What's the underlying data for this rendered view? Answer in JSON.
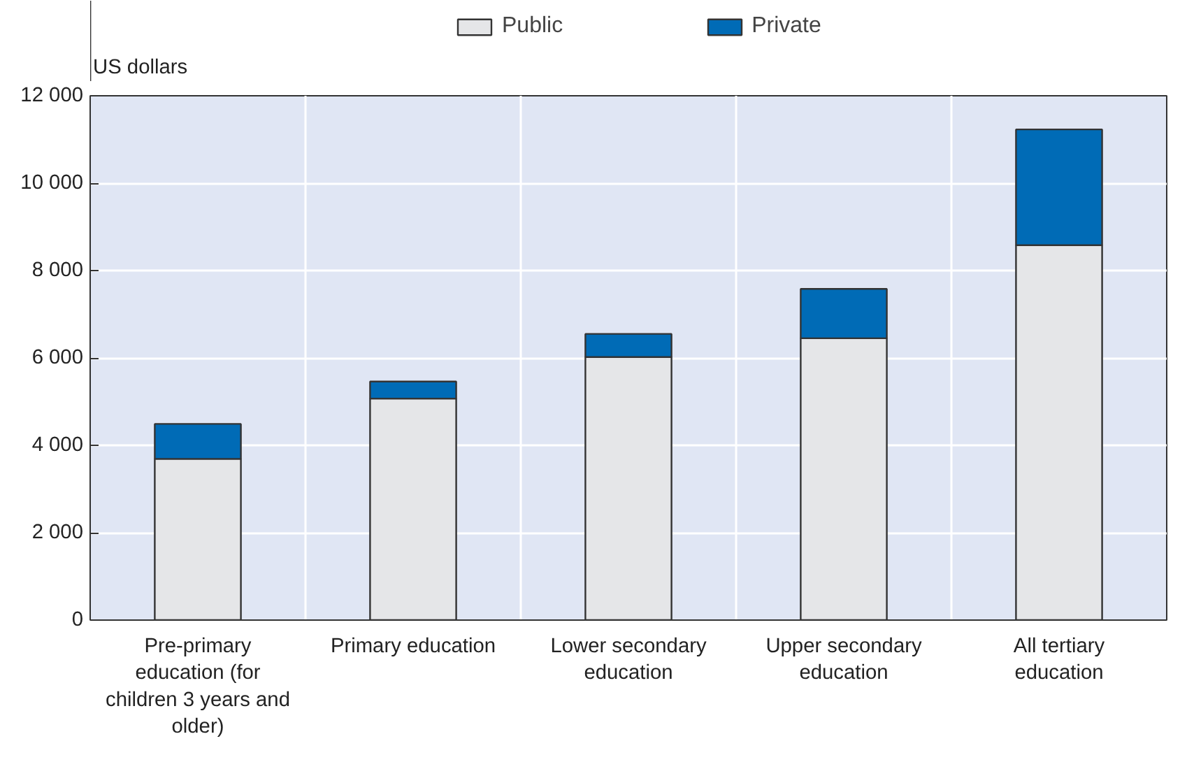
{
  "chart_data": {
    "type": "bar",
    "stacked": true,
    "ylabel": "US dollars",
    "categories": [
      "Pre-primary education (for children 3 years and older)",
      "Primary education",
      "Lower secondary education",
      "Upper secondary education",
      "All tertiary education"
    ],
    "series": [
      {
        "name": "Public",
        "color": "#e5e6e8",
        "values": [
          3690,
          5070,
          6020,
          6450,
          8580
        ]
      },
      {
        "name": "Private",
        "color": "#006bb6",
        "values": [
          800,
          390,
          530,
          1130,
          2650
        ]
      }
    ],
    "ylim": [
      0,
      12000
    ],
    "yticks": [
      0,
      {
        "value": 2000,
        "label": "2 000"
      },
      {
        "value": 4000,
        "label": "4 000"
      },
      {
        "value": 6000,
        "label": "6 000"
      },
      {
        "value": 8000,
        "label": "8 000"
      },
      {
        "value": 10000,
        "label": "10 000"
      },
      {
        "value": 12000,
        "label": "12 000"
      }
    ],
    "grid": true,
    "legend": "top"
  }
}
